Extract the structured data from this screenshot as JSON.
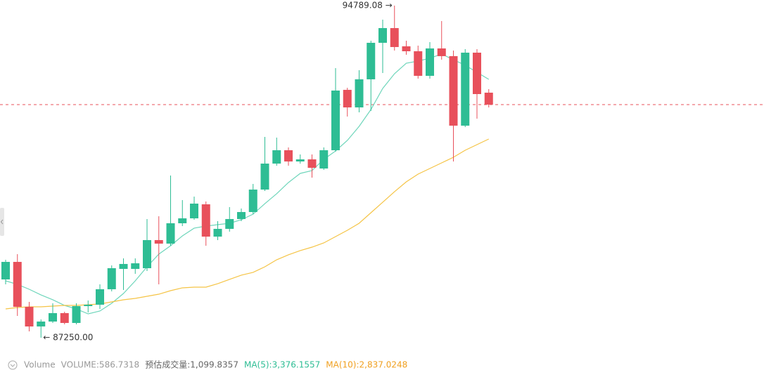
{
  "chart_data": {
    "type": "candlestick",
    "up_color": "#2ebd94",
    "down_color": "#e8505b",
    "open": [
      88573,
      88971,
      87951,
      87505,
      87617,
      87808,
      87585,
      87967,
      87999,
      88350,
      88812,
      88812,
      88828,
      89466,
      89386,
      89848,
      89960,
      90278,
      89545,
      89721,
      89944,
      90103,
      90613,
      91203,
      91506,
      91251,
      91299,
      91091,
      91506,
      92877,
      92478,
      93116,
      93945,
      94279,
      93865,
      93753,
      93195,
      93817,
      93642,
      92064,
      93721,
      92813
    ],
    "high": [
      89019,
      89147,
      88063,
      87664,
      88031,
      87840,
      88031,
      88095,
      88461,
      88892,
      89051,
      89051,
      89944,
      90007,
      90932,
      90374,
      90454,
      90342,
      89896,
      90215,
      90183,
      90741,
      91809,
      91793,
      91570,
      91410,
      91410,
      91570,
      93371,
      92924,
      93323,
      93992,
      94471,
      94789.08,
      93992,
      93881,
      93961,
      94439,
      93769,
      93801,
      93801,
      92893
    ],
    "low": [
      88461,
      87744,
      87393,
      87250,
      87585,
      87553,
      87553,
      87824,
      87903,
      88302,
      88334,
      88700,
      88764,
      88461,
      89338,
      89784,
      89928,
      89338,
      89466,
      89657,
      89896,
      90055,
      90581,
      91155,
      91155,
      91203,
      90884,
      91060,
      91474,
      92271,
      92367,
      92398,
      93259,
      93769,
      93674,
      93132,
      93132,
      93562,
      91251,
      92032,
      92223,
      92478
    ],
    "close": [
      88971,
      87951,
      87505,
      87617,
      87808,
      87585,
      87967,
      87999,
      88350,
      88828,
      88924,
      88939,
      89466,
      89386,
      89848,
      89960,
      90294,
      89545,
      89721,
      89944,
      90103,
      90613,
      91203,
      91506,
      91251,
      91299,
      91107,
      91506,
      92861,
      92478,
      93116,
      93945,
      94279,
      93849,
      93753,
      93195,
      93817,
      93642,
      92064,
      93721,
      92781,
      92542
    ],
    "series": [
      {
        "color": "#6fd6bb",
        "values": [
          88541,
          88461,
          88350,
          88222,
          88111,
          87983,
          87903,
          87792,
          87856,
          88031,
          88254,
          88541,
          88860,
          89147,
          89338,
          89561,
          89737,
          89784,
          89816,
          89848,
          89928,
          90055,
          90294,
          90518,
          90773,
          90980,
          91044,
          91299,
          91490,
          91729,
          92048,
          92430,
          92909,
          93243,
          93482,
          93530,
          93594,
          93690,
          93562,
          93435,
          93275,
          93116
        ]
      },
      {
        "color": "#f5c446",
        "values": [
          87903,
          87935,
          87951,
          87951,
          87967,
          87983,
          87983,
          87999,
          88015,
          88063,
          88111,
          88143,
          88190,
          88238,
          88318,
          88382,
          88398,
          88398,
          88477,
          88573,
          88669,
          88733,
          88860,
          89019,
          89131,
          89227,
          89306,
          89402,
          89545,
          89689,
          89848,
          90087,
          90326,
          90565,
          90788,
          90964,
          91091,
          91219,
          91346,
          91506,
          91633,
          91761
        ]
      }
    ],
    "last_price_line": {
      "color": "#e8505b",
      "dashed": true
    },
    "high_label": "94789.08 →",
    "low_label": "← 87250.00"
  },
  "footer": {
    "items": [
      {
        "text": "Volume",
        "color": "#999999"
      },
      {
        "text": "VOLUME:586.7318",
        "color": "#999999"
      },
      {
        "text": "预估成交量:1,099.8357",
        "color": "#666666"
      },
      {
        "text": "MA(5):3,376.1557",
        "color": "#2ebd94"
      },
      {
        "text": "MA(10):2,837.0248",
        "color": "#f0a020"
      }
    ]
  }
}
